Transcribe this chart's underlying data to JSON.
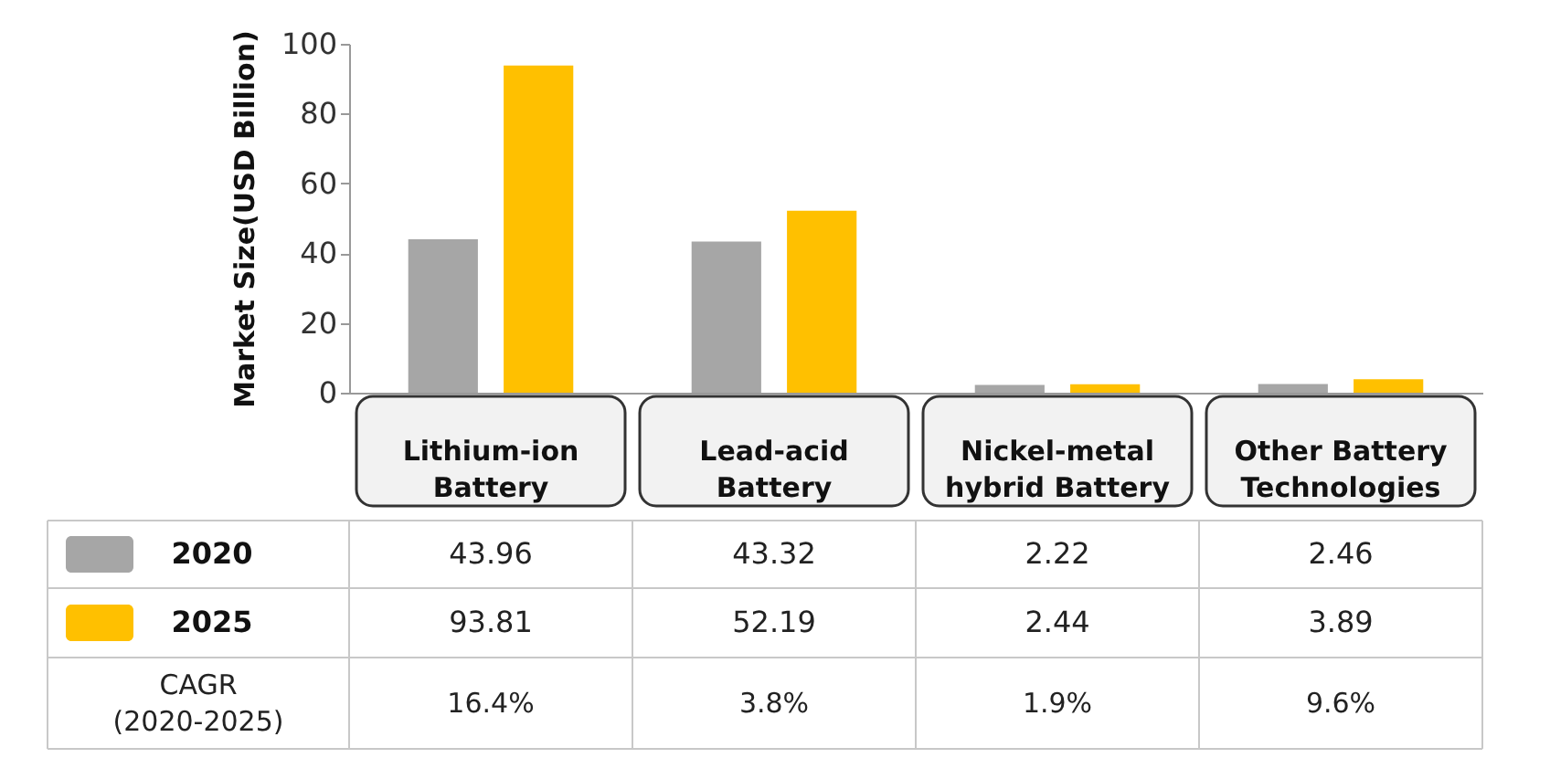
{
  "chart_data": {
    "type": "bar",
    "ylabel": "Market Size(USD Billion)",
    "categories": [
      "Lithium-ion Battery",
      "Lead-acid Battery",
      "Nickel-metal hybrid Battery",
      "Other Battery Technologies"
    ],
    "series": [
      {
        "name": "2020",
        "color": "#a6a6a6",
        "values": [
          43.96,
          43.32,
          2.22,
          2.46
        ]
      },
      {
        "name": "2025",
        "color": "#ffc000",
        "values": [
          93.81,
          52.19,
          2.44,
          3.89
        ]
      }
    ],
    "ylim": [
      0,
      100
    ],
    "yticks": [
      0,
      20,
      40,
      60,
      80,
      100
    ],
    "data_labels": true,
    "legend": "bottom left",
    "annotations": [
      "CAGR (2020-2025)",
      "16.4%",
      "3.8%",
      "1.9%",
      "9.6%"
    ]
  }
}
